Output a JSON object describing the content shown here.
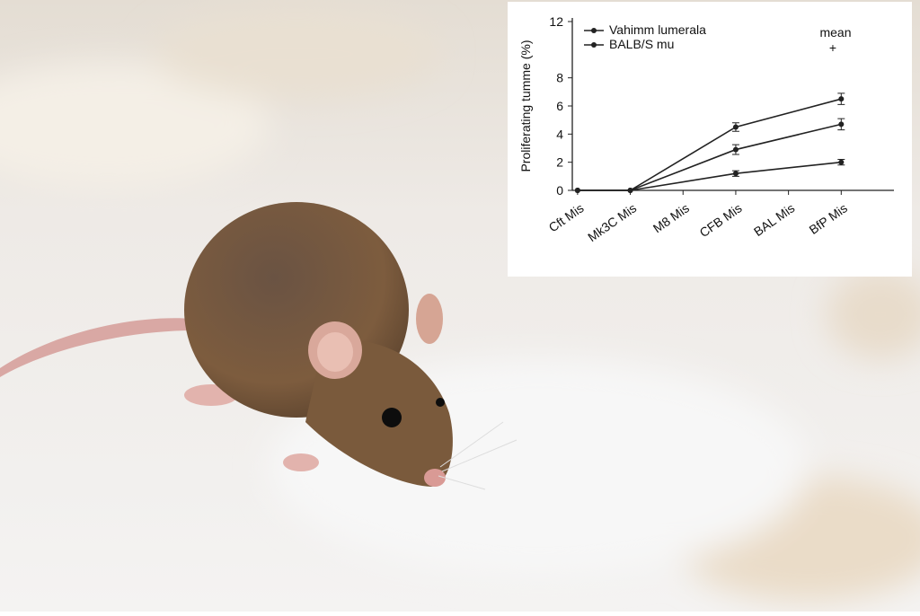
{
  "chart_data": {
    "type": "line",
    "ylabel": "Proliferating tumme (%)",
    "annotations": [
      "mean",
      "+"
    ],
    "x": [
      0,
      1,
      3,
      5
    ],
    "xlim": [
      -0.1,
      6
    ],
    "xticks": [
      {
        "value": 0,
        "label": "Cft Mis"
      },
      {
        "value": 1,
        "label": "Mk3C Mis"
      },
      {
        "value": 2,
        "label": "M8 Mis"
      },
      {
        "value": 3,
        "label": "CFB Mis"
      },
      {
        "value": 4,
        "label": "BAL Mis"
      },
      {
        "value": 5,
        "label": "BfP Mis"
      }
    ],
    "ylim": [
      0,
      12
    ],
    "yticks": [
      0,
      2,
      4,
      6,
      8,
      12
    ],
    "series": [
      {
        "name": "Vahimm lumerala",
        "color": "#222222",
        "values": [
          0,
          0,
          4.5,
          6.5
        ],
        "errors": [
          0,
          0,
          0.3,
          0.4
        ]
      },
      {
        "name": "BALB/S mu",
        "color": "#222222",
        "values": [
          0,
          0,
          2.9,
          4.7
        ],
        "errors": [
          0,
          0,
          0.35,
          0.4
        ]
      },
      {
        "color": "#222222",
        "values": [
          0,
          0,
          1.2,
          2.0
        ],
        "errors": [
          0,
          0,
          0.2,
          0.2
        ]
      }
    ]
  }
}
